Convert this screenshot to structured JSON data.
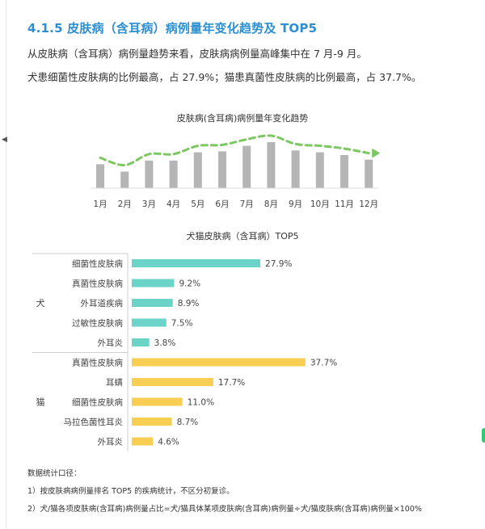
{
  "section": {
    "title": "4.1.5 皮肤病（含耳病）病例量年变化趋势及 TOP5",
    "para1": "从皮肤病（含耳病）病例量趋势来看，皮肤病病例量高峰集中在 7 月-9 月。",
    "para2": "犬患细菌性皮肤病的比例最高，占 27.9%；猫患真菌性皮肤病的比例最高，占 37.7%。"
  },
  "chart_data": [
    {
      "type": "bar",
      "title": "皮肤病(含耳病)病例量年变化趋势",
      "categories": [
        "1月",
        "2月",
        "3月",
        "4月",
        "5月",
        "6月",
        "7月",
        "8月",
        "9月",
        "10月",
        "11月",
        "12月"
      ],
      "values": [
        0.52,
        0.36,
        0.6,
        0.6,
        0.78,
        0.8,
        0.92,
        1.0,
        0.82,
        0.78,
        0.72,
        0.62
      ],
      "trend_line": "dashed-arrow",
      "y_axis": "none",
      "colors": {
        "bar": "#b5b5b5",
        "trend": "#7dc760"
      }
    },
    {
      "type": "bar",
      "orientation": "horizontal",
      "title": "犬猫皮肤病（含耳病）TOP5",
      "unit": "%",
      "groups": [
        {
          "name": "犬",
          "color": "#6cd3c9",
          "categories": [
            "细菌性皮肤病",
            "真菌性皮肤病",
            "外耳道疾病",
            "过敏性皮肤病",
            "外耳炎"
          ],
          "values": [
            27.9,
            9.2,
            8.9,
            7.5,
            3.8
          ]
        },
        {
          "name": "猫",
          "color": "#f8cf52",
          "categories": [
            "真菌性皮肤病",
            "耳螨",
            "细菌性皮肤病",
            "马拉色菌性耳炎",
            "外耳炎"
          ],
          "values": [
            37.7,
            17.7,
            11.0,
            8.7,
            4.6
          ]
        }
      ]
    }
  ],
  "footer": {
    "heading": "数据统计口径：",
    "note1": "1）按皮肤病病例量排名 TOP5 的疾病统计，不区分初复诊。",
    "note2": "2）犬/猫各项皮肤病(含耳病)病例量占比=犬/猫具体某项皮肤病(含耳病)病例量÷犬/猫皮肤病(含耳病)病例量×100%"
  }
}
